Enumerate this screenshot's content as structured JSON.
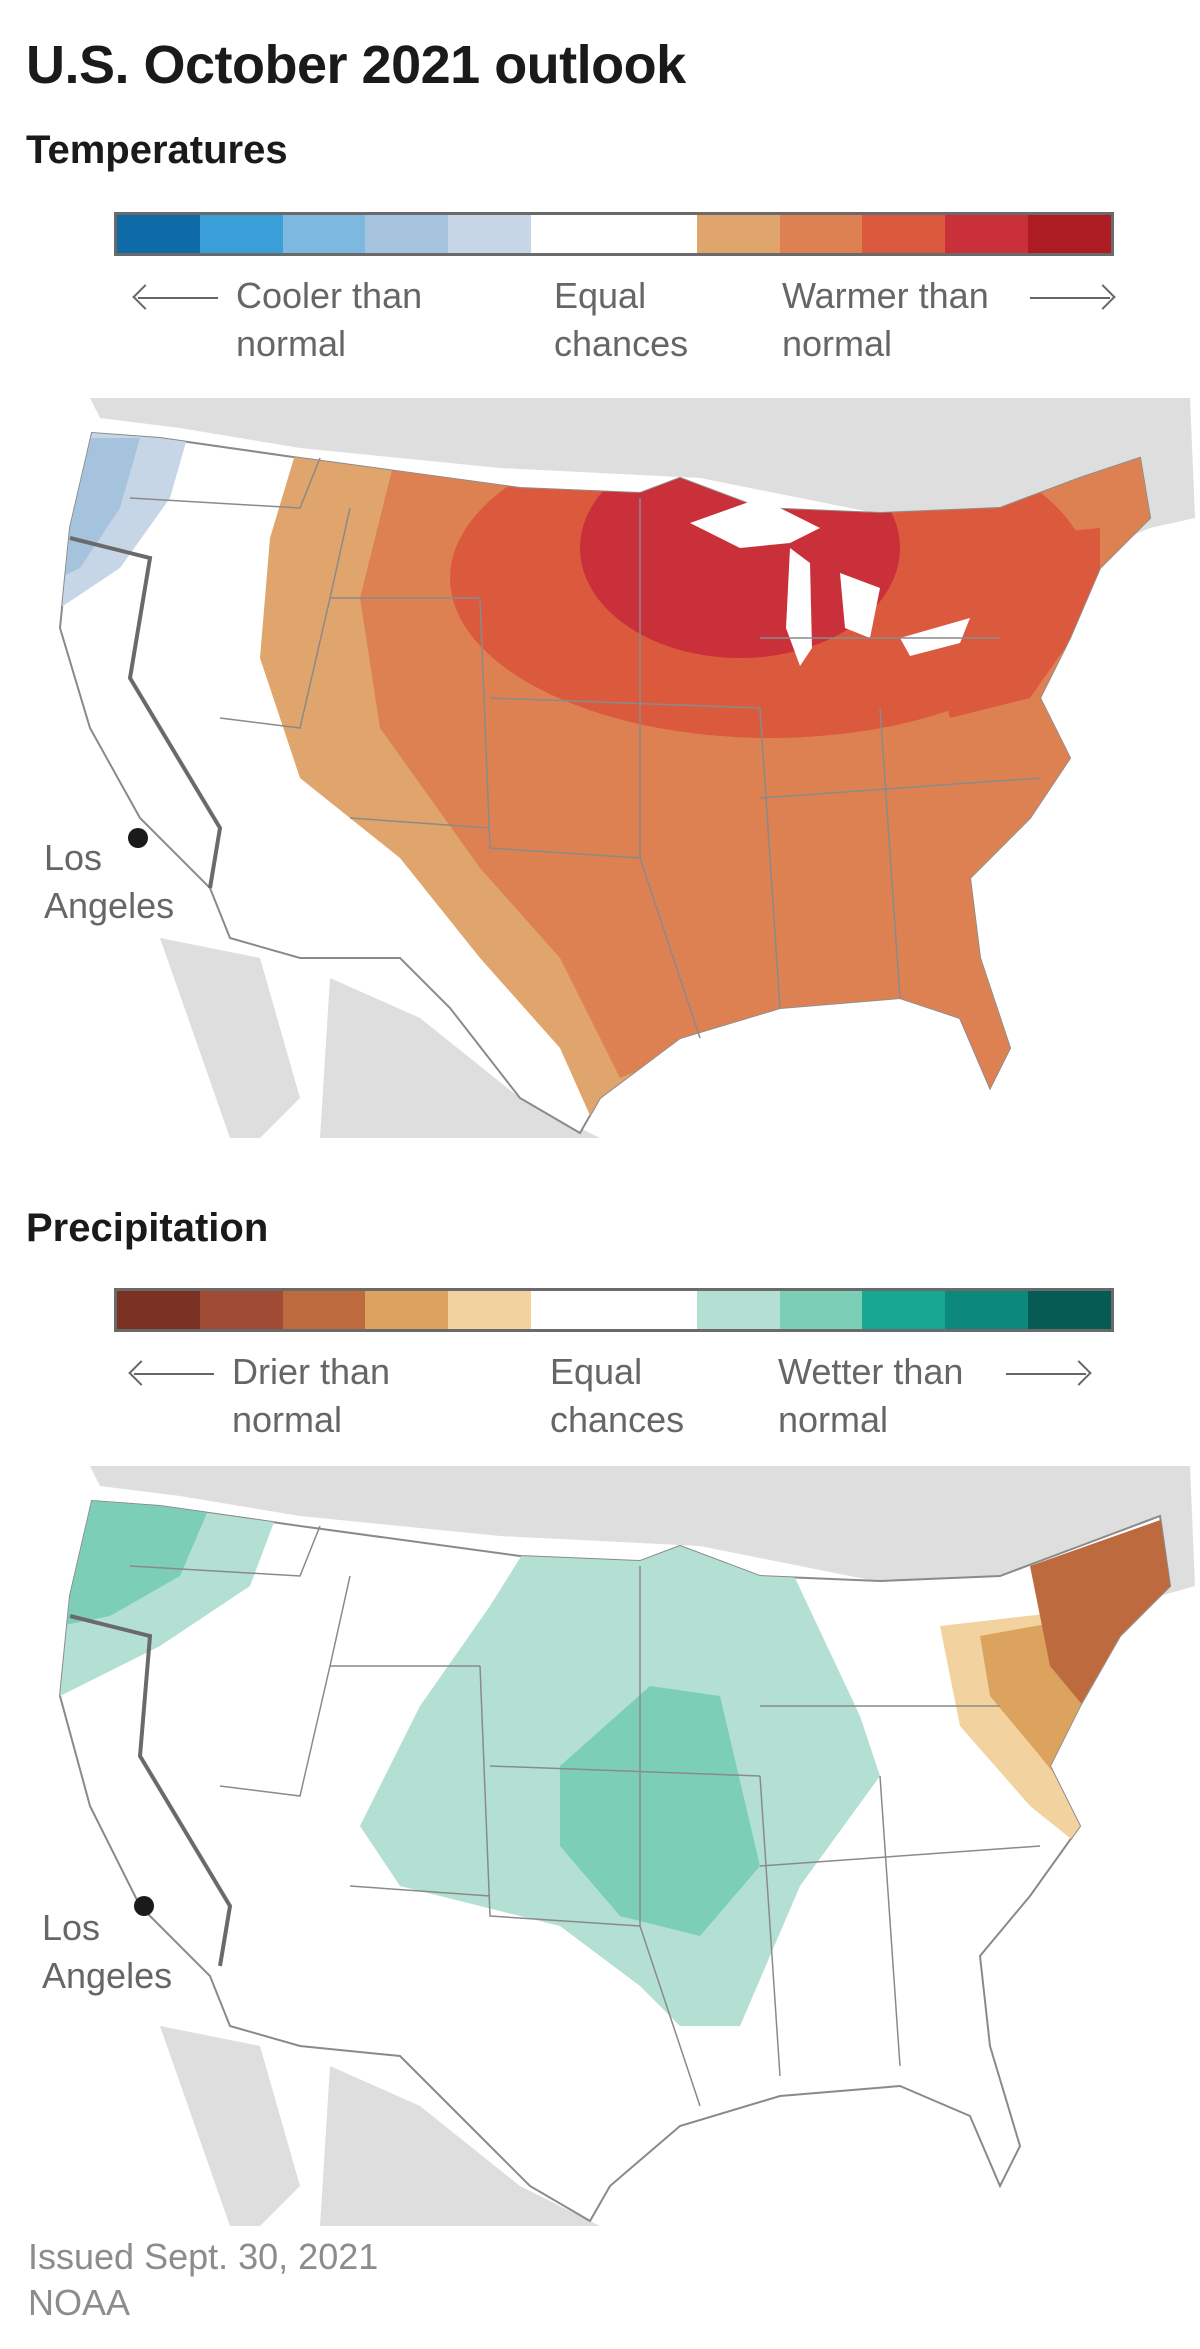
{
  "title": "U.S. October 2021 outlook",
  "temperature": {
    "heading": "Temperatures",
    "legend_colors": [
      "#0f6aa8",
      "#3a9fd8",
      "#7cb8df",
      "#a6c3de",
      "#c7d6e6",
      "#ffffff",
      "#e0a56c",
      "#dd8152",
      "#db5a3e",
      "#c9303a",
      "#ad1c22"
    ],
    "left_label": "Cooler than normal",
    "center_label": "Equal chances",
    "right_label": "Warmer than normal",
    "city": "Los Angeles"
  },
  "precipitation": {
    "heading": "Precipitation",
    "legend_colors": [
      "#7c3222",
      "#a04c34",
      "#bd6b3e",
      "#dba35e",
      "#f2d3a0",
      "#ffffff",
      "#b3e0d3",
      "#7ccfb6",
      "#17a892",
      "#0c887c",
      "#065c55"
    ],
    "left_label": "Drier than normal",
    "center_label": "Equal chances",
    "right_label": "Wetter than normal",
    "city": "Los Angeles"
  },
  "footer": {
    "issued": "Issued Sept. 30, 2021",
    "source": "NOAA"
  }
}
